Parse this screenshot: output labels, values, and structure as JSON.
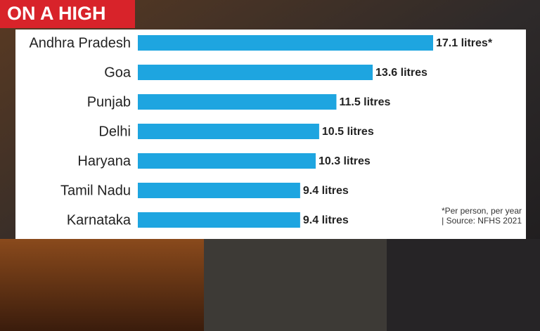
{
  "chart_data": {
    "type": "bar",
    "orientation": "horizontal",
    "title": "ON A HIGH",
    "categories": [
      "Andhra Pradesh",
      "Goa",
      "Punjab",
      "Delhi",
      "Haryana",
      "Tamil Nadu",
      "Karnataka"
    ],
    "values": [
      17.1,
      13.6,
      11.5,
      10.5,
      10.3,
      9.4,
      9.4
    ],
    "value_labels": [
      "17.1 litres*",
      "13.6 litres",
      "11.5 litres",
      "10.5 litres",
      "10.3 litres",
      "9.4 litres",
      "9.4 litres"
    ],
    "color": "#1ea5e0",
    "footnote": "*Per person, per year | Source: NFHS 2021"
  }
}
